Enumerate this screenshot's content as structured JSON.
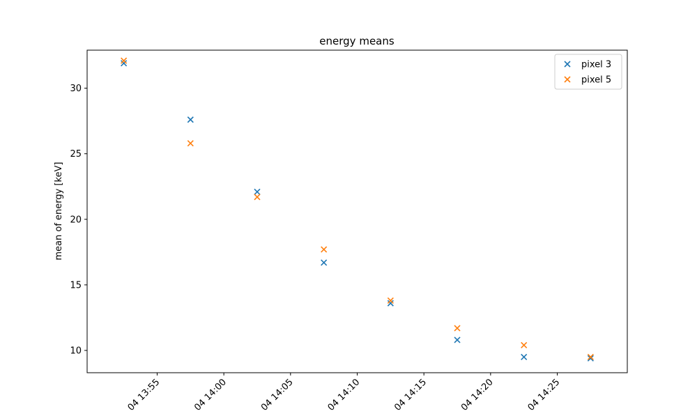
{
  "chart_data": {
    "type": "scatter",
    "title": "energy means",
    "xlabel": "",
    "ylabel": "mean of energy [keV]",
    "x": [
      "13:52:30",
      "13:57:30",
      "14:02:30",
      "14:07:30",
      "14:12:30",
      "14:17:30",
      "14:22:30",
      "14:27:30"
    ],
    "series": [
      {
        "name": "pixel 3",
        "color": "#1f77b4",
        "values": [
          31.9,
          27.6,
          22.1,
          16.7,
          13.6,
          10.8,
          9.5,
          9.4
        ]
      },
      {
        "name": "pixel 5",
        "color": "#ff7f0e",
        "values": [
          32.1,
          25.8,
          21.7,
          17.7,
          13.8,
          11.7,
          10.4,
          9.5
        ]
      }
    ],
    "xticks": [
      {
        "time": "13:55",
        "label": "04 13:55"
      },
      {
        "time": "14:00",
        "label": "04 14:00"
      },
      {
        "time": "14:05",
        "label": "04 14:05"
      },
      {
        "time": "14:10",
        "label": "04 14:10"
      },
      {
        "time": "14:15",
        "label": "04 14:15"
      },
      {
        "time": "14:20",
        "label": "04 14:20"
      },
      {
        "time": "14:25",
        "label": "04 14:25"
      }
    ],
    "xlim": [
      "13:49:45",
      "14:30:15"
    ],
    "yticks": [
      10,
      15,
      20,
      25,
      30
    ],
    "ylim": [
      8.3,
      32.9
    ],
    "marker": "x",
    "grid": false,
    "legend_position": "top-right"
  }
}
